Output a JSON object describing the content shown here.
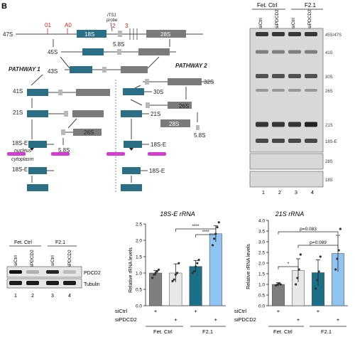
{
  "panel_letter": "B",
  "pathway_diagram": {
    "precursor": "47S",
    "site_01": "01",
    "site_A0": "A0",
    "probe_label_line1": "ITS1",
    "probe_label_line2": "probe",
    "site_2": "2",
    "site_3": "3",
    "segment_18S": "18S",
    "segment_58S": "5.8S",
    "segment_28S": "28S",
    "label_45S": "45S",
    "label_43S": "43S",
    "pathway_1": "PATHWAY 1",
    "pathway_2": "PATHWAY 2",
    "label_41S": "41S",
    "label_32S": "32S",
    "label_30S": "30S",
    "label_26S_right": "26S",
    "label_21S_left": "21S",
    "label_21S_right": "21S",
    "label_26S_left": "26S",
    "label_28S_right": "28S",
    "label_58S_left": "5.8S",
    "label_58S_right": "5.8S",
    "label_18SE_left": "18S-E",
    "label_18SE_right": "18S-E",
    "nucleus": "nucleus",
    "cytoplasm": "cytoplasm",
    "label_18SE_cyto_left": "18S-E",
    "label_18SE_cyto_right": "18S-E"
  },
  "northern_blot": {
    "group_headers": [
      "Fet. Ctrl",
      "F2.1"
    ],
    "lane_labels": [
      "siCtrl",
      "siPDCD2",
      "siCtrl",
      "siPDCD2"
    ],
    "band_labels": [
      "45S/47S",
      "41S",
      "30S",
      "26S",
      "21S",
      "18S-E",
      "28S",
      "18S"
    ],
    "lane_numbers": [
      "1",
      "2",
      "3",
      "4"
    ]
  },
  "western_blot": {
    "group_headers": [
      "Fet. Ctrl",
      "F2.1"
    ],
    "lane_labels": [
      "siCtrl",
      "siPDCD2",
      "siCtrl",
      "siPDCD2"
    ],
    "protein_labels": [
      "PDCD2",
      "Tubulin"
    ],
    "lane_numbers": [
      "1",
      "2",
      "3",
      "4"
    ]
  },
  "x_condition_rows": {
    "row_labels": [
      "siCtrl",
      "siPDCD2"
    ],
    "signs_siCtrl": [
      "+",
      "",
      "+",
      ""
    ],
    "signs_siPDCD2": [
      "",
      "+",
      "",
      "+"
    ],
    "groups": [
      "Fet. Ctrl",
      "F2.1"
    ]
  },
  "chart_data": [
    {
      "type": "bar",
      "title": "18S-E rRNA",
      "ylabel": "Relative rRNA levels",
      "categories": [
        "Fet. Ctrl siCtrl",
        "Fet. Ctrl siPDCD2",
        "F2.1 siCtrl",
        "F2.1 siPDCD2"
      ],
      "values": [
        1.0,
        1.0,
        1.2,
        2.2
      ],
      "errors": [
        0.08,
        0.28,
        0.18,
        0.25
      ],
      "points": [
        [
          0.85,
          0.95,
          1.0,
          1.05,
          1.1
        ],
        [
          0.75,
          0.8,
          0.95,
          1.0,
          1.3
        ],
        [
          1.0,
          1.05,
          1.2,
          1.3,
          1.4
        ],
        [
          1.85,
          2.05,
          2.2,
          2.4,
          2.55
        ]
      ],
      "ylim": [
        0,
        2.5
      ],
      "yticks": [
        "0.0",
        "0.5",
        "1.0",
        "1.5",
        "2.0",
        "2.5"
      ],
      "bar_colors": [
        "#7f7f7f",
        "#e8e8e8",
        "#1b6f86",
        "#8fc3f2"
      ],
      "significance": [
        {
          "from": 2,
          "to": 3,
          "label": "****"
        },
        {
          "from": 1,
          "to": 3,
          "label": "****"
        }
      ]
    },
    {
      "type": "bar",
      "title": "21S rRNA",
      "ylabel": "Relative rRNA levels",
      "categories": [
        "Fet. Ctrl siCtrl",
        "Fet. Ctrl siPDCD2",
        "F2.1 siCtrl",
        "F2.1 siPDCD2"
      ],
      "values": [
        1.0,
        1.65,
        1.55,
        2.45
      ],
      "errors": [
        0.08,
        0.55,
        0.6,
        0.85
      ],
      "points": [
        [
          0.95,
          1.0,
          1.05,
          1.0
        ],
        [
          1.0,
          1.3,
          1.7,
          2.4
        ],
        [
          0.8,
          1.2,
          1.6,
          2.3
        ],
        [
          1.7,
          2.2,
          2.6,
          3.6
        ]
      ],
      "ylim": [
        0,
        4.0
      ],
      "yticks": [
        "0.0",
        "0.5",
        "1.0",
        "1.5",
        "2.0",
        "2.5",
        "3.0",
        "3.5",
        "4.0"
      ],
      "bar_colors": [
        "#7f7f7f",
        "#e8e8e8",
        "#1b6f86",
        "#8fc3f2"
      ],
      "significance": [
        {
          "from": 0,
          "to": 1,
          "label": "*"
        },
        {
          "from": 1,
          "to": 3,
          "label": "p=0.089"
        },
        {
          "from": 0,
          "to": 3,
          "label": "p=0.083"
        }
      ]
    }
  ],
  "colors": {
    "teal": "#2a6f86",
    "gray_block": "#7b7b7b",
    "light_gray": "#b9b9b9",
    "magenta": "#d23fd0"
  }
}
